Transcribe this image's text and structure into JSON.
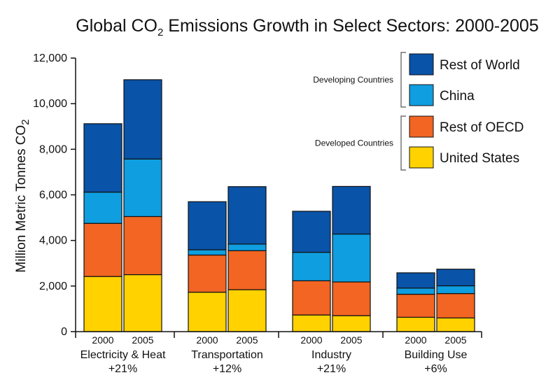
{
  "chart_data": {
    "type": "bar",
    "stacked": true,
    "title": {
      "pre": "Global CO",
      "sub": "2",
      "post": " Emissions Growth in Select Sectors: 2000-2005"
    },
    "ylabel": {
      "pre": "Million Metric Tonnes CO",
      "sub": "2"
    },
    "ylim": [
      0,
      12000
    ],
    "yticks": [
      0,
      2000,
      4000,
      6000,
      8000,
      10000,
      12000
    ],
    "ytick_labels": [
      "0",
      "2,000",
      "4,000",
      "6,000",
      "8,000",
      "10,000",
      "12,000"
    ],
    "years": [
      "2000",
      "2005"
    ],
    "groups": [
      {
        "name": "Electricity & Heat",
        "change": "+21%"
      },
      {
        "name": "Transportation",
        "change": "+12%"
      },
      {
        "name": "Industry",
        "change": "+21%"
      },
      {
        "name": "Building Use",
        "change": "+6%"
      }
    ],
    "series": [
      {
        "name": "United States",
        "color": "#ffd200",
        "values": [
          [
            2420,
            2500
          ],
          [
            1730,
            1840
          ],
          [
            730,
            700
          ],
          [
            630,
            600
          ]
        ]
      },
      {
        "name": "Rest of OECD",
        "color": "#f26522",
        "values": [
          [
            2330,
            2550
          ],
          [
            1630,
            1710
          ],
          [
            1500,
            1480
          ],
          [
            1010,
            1070
          ]
        ]
      },
      {
        "name": "China",
        "color": "#0f9ee0",
        "values": [
          [
            1370,
            2520
          ],
          [
            230,
            290
          ],
          [
            1250,
            2100
          ],
          [
            270,
            340
          ]
        ]
      },
      {
        "name": "Rest of World",
        "color": "#0953a8",
        "values": [
          [
            3000,
            3480
          ],
          [
            2110,
            2520
          ],
          [
            1800,
            2090
          ],
          [
            670,
            730
          ]
        ]
      }
    ],
    "legend": {
      "placement": "top-right",
      "order": [
        "Rest of World",
        "China",
        "Rest of OECD",
        "United States"
      ],
      "brackets": [
        {
          "label": "Developing Countries",
          "members": [
            "Rest of World",
            "China"
          ]
        },
        {
          "label": "Developed Countries",
          "members": [
            "Rest of OECD",
            "United States"
          ]
        }
      ]
    },
    "grid": false
  }
}
